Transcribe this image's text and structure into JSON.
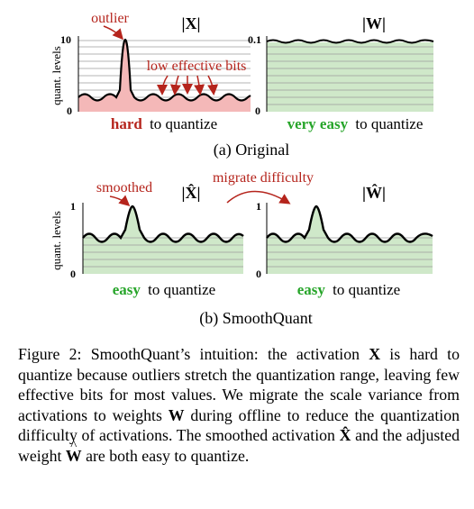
{
  "panel_a": {
    "outlier_label": "outlier",
    "x_title": "|X|",
    "w_title": "|W|",
    "y_axis_label": "quant. levels",
    "x_max_tick": "10",
    "w_max_tick": "0.1",
    "zero_tick": "0",
    "low_bits_label": "low effective bits",
    "x_quantize_word": "hard",
    "x_quantize_rest": "to quantize",
    "w_quantize_word": "very easy",
    "w_quantize_rest": "to quantize",
    "subcaption": "(a) Original"
  },
  "panel_b": {
    "smoothed_label": "smoothed",
    "migrate_label": "migrate difficulty",
    "x_title": "|X̂|",
    "w_title": "|Ŵ|",
    "y_axis_label": "quant. levels",
    "x_max_tick": "1",
    "w_max_tick": "1",
    "zero_tick": "0",
    "x_quantize_word": "easy",
    "x_quantize_rest": "to quantize",
    "w_quantize_word": "easy",
    "w_quantize_rest": "to quantize",
    "subcaption": "(b) SmoothQuant"
  },
  "caption": {
    "figure_label": "Figure 2:",
    "text_1": "SmoothQuant’s intuition: the activation",
    "sym_X": "X",
    "text_2": "is hard to quantize because outliers stretch the quantization range, leaving few effective bits for most values. We migrate the scale variance from activations to weights",
    "sym_W": "W",
    "text_3": "during offline to reduce the quantization difficulty of activations. The smoothed activation",
    "sym_Xhat": "X̂",
    "text_4": "and the adjusted weight",
    "sym_What": "W",
    "text_5": "are both easy to quantize."
  },
  "colors": {
    "red_label": "#b5241c",
    "red_fill": "#f4b8b8",
    "green_label": "#27a52a",
    "green_fill": "#cfe8c9",
    "grid": "#9b9b9b",
    "curve": "#000000"
  }
}
